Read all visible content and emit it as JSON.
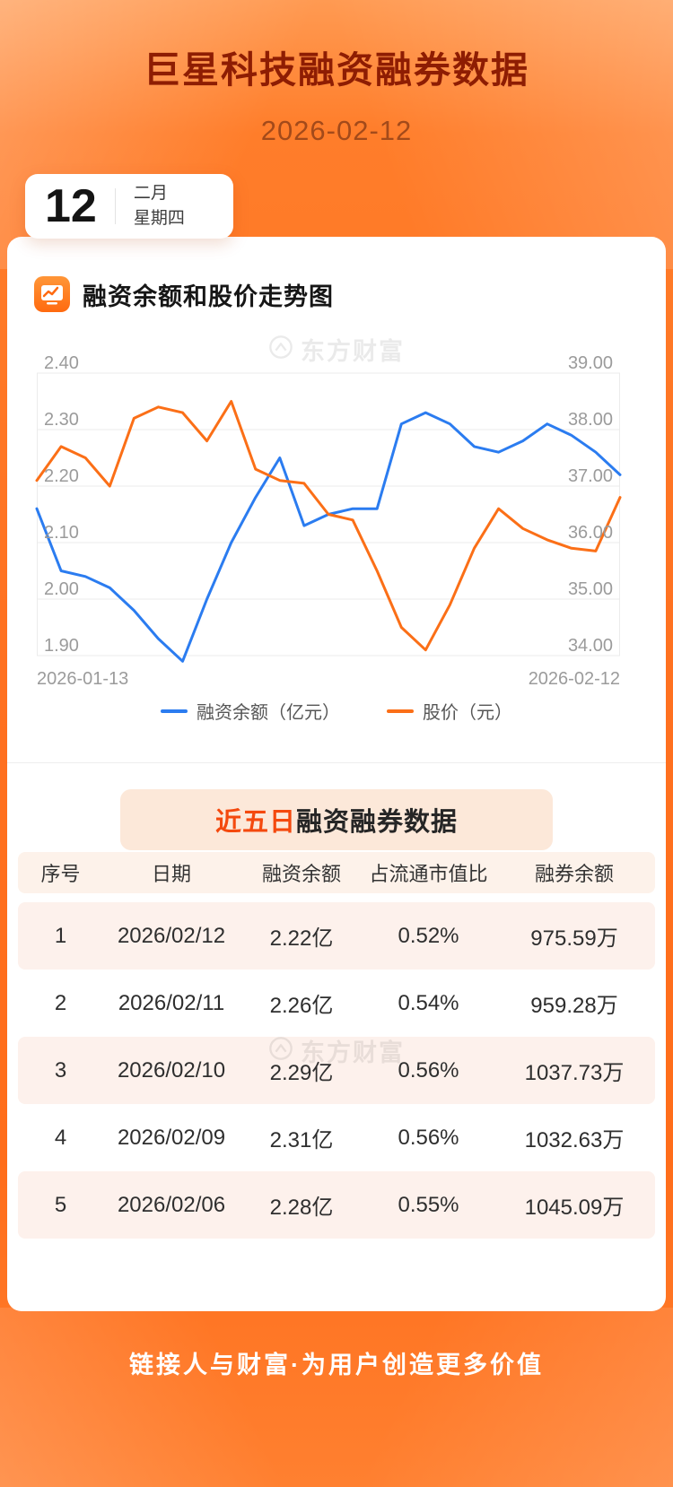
{
  "header": {
    "title": "巨星科技融资融券数据",
    "date": "2026-02-12"
  },
  "date_badge": {
    "day": "12",
    "month": "二月",
    "weekday": "星期四"
  },
  "watermark": {
    "text": "东方财富"
  },
  "chart_section": {
    "heading": "融资余额和股价走势图"
  },
  "chart_data": {
    "type": "line",
    "title": "融资余额和股价走势图",
    "x_labels_visible": [
      "2026-01-13",
      "2026-02-12"
    ],
    "left_axis": {
      "label": "融资余额（亿元）",
      "min": 1.9,
      "max": 2.4,
      "ticks": [
        "2.40",
        "2.30",
        "2.20",
        "2.10",
        "2.00",
        "1.90"
      ]
    },
    "right_axis": {
      "label": "股价（元）",
      "min": 34,
      "max": 39,
      "ticks": [
        "39.00",
        "38.00",
        "37.00",
        "36.00",
        "35.00",
        "34.00"
      ]
    },
    "grid": true,
    "legend_position": "bottom",
    "series": [
      {
        "name": "融资余额（亿元）",
        "axis": "left",
        "color": "#2b7cf0",
        "values": [
          2.16,
          2.05,
          2.04,
          2.02,
          1.98,
          1.93,
          1.89,
          2.0,
          2.1,
          2.18,
          2.25,
          2.13,
          2.15,
          2.16,
          2.16,
          2.31,
          2.33,
          2.31,
          2.27,
          2.26,
          2.28,
          2.31,
          2.29,
          2.26,
          2.22
        ]
      },
      {
        "name": "股价（元）",
        "axis": "right",
        "color": "#fb6f17",
        "values": [
          37.1,
          37.7,
          37.5,
          37.0,
          38.2,
          38.4,
          38.3,
          37.8,
          38.5,
          37.3,
          37.1,
          37.05,
          36.5,
          36.4,
          35.5,
          34.5,
          34.1,
          34.9,
          35.9,
          36.6,
          36.25,
          36.05,
          35.9,
          35.85,
          36.8
        ]
      }
    ]
  },
  "table_section": {
    "title_highlight": "近五日",
    "title_rest": "融资融券数据",
    "columns": [
      "序号",
      "日期",
      "融资余额",
      "占流通市值比",
      "融券余额"
    ],
    "rows": [
      [
        "1",
        "2026/02/12",
        "2.22亿",
        "0.52%",
        "975.59万"
      ],
      [
        "2",
        "2026/02/11",
        "2.26亿",
        "0.54%",
        "959.28万"
      ],
      [
        "3",
        "2026/02/10",
        "2.29亿",
        "0.56%",
        "1037.73万"
      ],
      [
        "4",
        "2026/02/09",
        "2.31亿",
        "0.56%",
        "1032.63万"
      ],
      [
        "5",
        "2026/02/06",
        "2.28亿",
        "0.55%",
        "1045.09万"
      ]
    ]
  },
  "footer": {
    "slogan": "链接人与财富·为用户创造更多价值"
  },
  "colors": {
    "page_orange": "#ff7120",
    "title_red": "#8e1d03",
    "highlight_red": "#f4490e",
    "line_blue": "#2b7cf0",
    "line_orange": "#fb6f17",
    "row_pink": "#fdf1ec",
    "pill_peach": "#fce8d9"
  }
}
